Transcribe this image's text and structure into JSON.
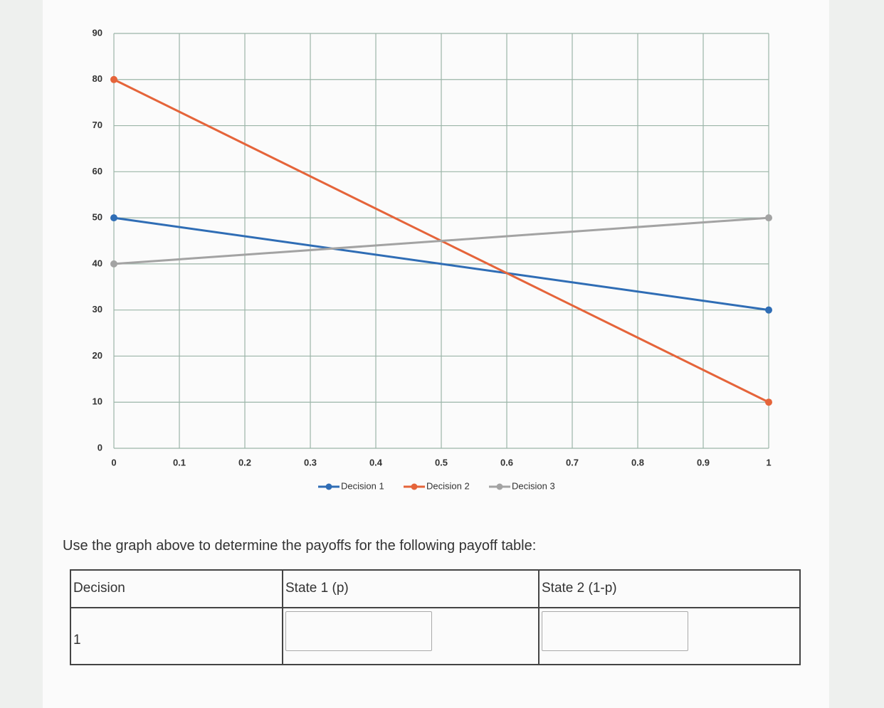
{
  "chart_data": {
    "type": "line",
    "x": [
      0,
      1
    ],
    "series": [
      {
        "name": "Decision 1",
        "color": "#2f6db5",
        "values": [
          50,
          30
        ]
      },
      {
        "name": "Decision 2",
        "color": "#e5643a",
        "values": [
          80,
          10
        ]
      },
      {
        "name": "Decision 3",
        "color": "#a3a3a3",
        "values": [
          40,
          50
        ]
      }
    ],
    "xlim": [
      0,
      1
    ],
    "xticks": [
      0,
      0.1,
      0.2,
      0.3,
      0.4,
      0.5,
      0.6,
      0.7,
      0.8,
      0.9,
      1
    ],
    "ylim": [
      0,
      90
    ],
    "yticks": [
      0,
      10,
      20,
      30,
      40,
      50,
      60,
      70,
      80,
      90
    ],
    "grid": true,
    "legend": "bottom"
  },
  "instruction": "Use the graph above to determine the payoffs for the following payoff table:",
  "table": {
    "header": [
      "Decision",
      "State 1 (p)",
      "State 2 (1-p)"
    ],
    "rows": [
      [
        "1"
      ]
    ]
  }
}
